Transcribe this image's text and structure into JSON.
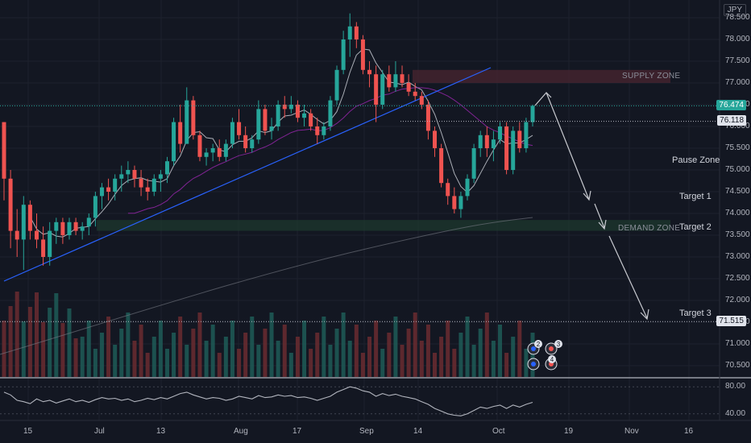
{
  "currency": "JPY",
  "price_ticks": [
    "78.500",
    "78.000",
    "77.500",
    "77.000",
    "76.500",
    "76.000",
    "75.500",
    "75.000",
    "74.500",
    "74.000",
    "73.500",
    "73.000",
    "72.500",
    "72.000",
    "71.500",
    "71.000",
    "70.500"
  ],
  "x_ticks": [
    "15",
    "Jul",
    "13",
    "Aug",
    "17",
    "Sep",
    "14",
    "Oct",
    "19",
    "Nov",
    "16"
  ],
  "osc_ticks": [
    "80.00",
    "40.00"
  ],
  "price_tags": {
    "last": "76.474",
    "level": "76.118",
    "target3": "71.515"
  },
  "zones": {
    "supply": "SUPPLY ZONE",
    "demand": "DEMAND ZONE"
  },
  "annotations": {
    "pause": "Pause Zone",
    "target1": "Target 1",
    "target2": "Target 2",
    "target3": "Target 3"
  },
  "events": [
    "2",
    "3",
    "4"
  ],
  "colors": {
    "bg": "#131722",
    "up": "#26a69a",
    "down": "#ef5350",
    "trendline": "#2962ff",
    "supply": "#4a2530",
    "demand": "#1e3a2e"
  },
  "chart_data": {
    "type": "candlestick",
    "ylim": [
      70.3,
      78.7
    ],
    "candles": [
      {
        "o": 76.1,
        "h": 76.1,
        "l": 74.3,
        "c": 74.8
      },
      {
        "o": 74.8,
        "h": 75.0,
        "l": 73.2,
        "c": 73.6
      },
      {
        "o": 73.6,
        "h": 74.1,
        "l": 73.0,
        "c": 73.4
      },
      {
        "o": 73.4,
        "h": 74.4,
        "l": 72.7,
        "c": 74.2
      },
      {
        "o": 74.2,
        "h": 74.3,
        "l": 73.4,
        "c": 73.6
      },
      {
        "o": 73.6,
        "h": 74.0,
        "l": 73.2,
        "c": 73.4
      },
      {
        "o": 73.4,
        "h": 73.7,
        "l": 72.8,
        "c": 73.0
      },
      {
        "o": 73.0,
        "h": 73.8,
        "l": 72.8,
        "c": 73.6
      },
      {
        "o": 73.6,
        "h": 73.9,
        "l": 73.3,
        "c": 73.8
      },
      {
        "o": 73.8,
        "h": 73.9,
        "l": 73.3,
        "c": 73.5
      },
      {
        "o": 73.5,
        "h": 73.9,
        "l": 73.4,
        "c": 73.8
      },
      {
        "o": 73.8,
        "h": 73.9,
        "l": 73.5,
        "c": 73.6
      },
      {
        "o": 73.6,
        "h": 73.8,
        "l": 73.4,
        "c": 73.7
      },
      {
        "o": 73.7,
        "h": 74.0,
        "l": 73.5,
        "c": 73.9
      },
      {
        "o": 73.9,
        "h": 74.5,
        "l": 73.7,
        "c": 74.4
      },
      {
        "o": 74.4,
        "h": 74.7,
        "l": 74.1,
        "c": 74.6
      },
      {
        "o": 74.6,
        "h": 74.8,
        "l": 74.3,
        "c": 74.5
      },
      {
        "o": 74.5,
        "h": 74.9,
        "l": 74.3,
        "c": 74.8
      },
      {
        "o": 74.8,
        "h": 75.1,
        "l": 74.5,
        "c": 74.9
      },
      {
        "o": 74.9,
        "h": 75.2,
        "l": 74.7,
        "c": 75.0
      },
      {
        "o": 75.0,
        "h": 75.1,
        "l": 74.6,
        "c": 74.8
      },
      {
        "o": 74.8,
        "h": 75.0,
        "l": 74.4,
        "c": 74.6
      },
      {
        "o": 74.6,
        "h": 74.8,
        "l": 74.3,
        "c": 74.5
      },
      {
        "o": 74.5,
        "h": 74.9,
        "l": 74.4,
        "c": 74.8
      },
      {
        "o": 74.8,
        "h": 75.0,
        "l": 74.5,
        "c": 74.9
      },
      {
        "o": 74.9,
        "h": 75.3,
        "l": 74.7,
        "c": 75.2
      },
      {
        "o": 75.2,
        "h": 76.2,
        "l": 75.1,
        "c": 76.1
      },
      {
        "o": 76.1,
        "h": 76.5,
        "l": 75.4,
        "c": 75.6
      },
      {
        "o": 75.6,
        "h": 76.9,
        "l": 75.6,
        "c": 76.6
      },
      {
        "o": 76.6,
        "h": 76.7,
        "l": 75.7,
        "c": 75.8
      },
      {
        "o": 75.8,
        "h": 75.9,
        "l": 75.2,
        "c": 75.3
      },
      {
        "o": 75.3,
        "h": 75.5,
        "l": 75.1,
        "c": 75.4
      },
      {
        "o": 75.4,
        "h": 75.6,
        "l": 75.2,
        "c": 75.5
      },
      {
        "o": 75.5,
        "h": 75.7,
        "l": 75.2,
        "c": 75.3
      },
      {
        "o": 75.3,
        "h": 75.7,
        "l": 75.2,
        "c": 75.6
      },
      {
        "o": 75.6,
        "h": 76.2,
        "l": 75.5,
        "c": 76.1
      },
      {
        "o": 76.1,
        "h": 76.4,
        "l": 75.7,
        "c": 75.8
      },
      {
        "o": 75.8,
        "h": 76.0,
        "l": 75.4,
        "c": 75.5
      },
      {
        "o": 75.5,
        "h": 75.8,
        "l": 75.4,
        "c": 75.7
      },
      {
        "o": 75.7,
        "h": 76.6,
        "l": 75.6,
        "c": 76.4
      },
      {
        "o": 76.4,
        "h": 76.5,
        "l": 75.8,
        "c": 75.9
      },
      {
        "o": 75.9,
        "h": 76.2,
        "l": 75.7,
        "c": 76.0
      },
      {
        "o": 76.0,
        "h": 76.6,
        "l": 75.9,
        "c": 76.5
      },
      {
        "o": 76.5,
        "h": 76.7,
        "l": 76.2,
        "c": 76.4
      },
      {
        "o": 76.4,
        "h": 76.7,
        "l": 76.3,
        "c": 76.5
      },
      {
        "o": 76.5,
        "h": 76.6,
        "l": 76.1,
        "c": 76.2
      },
      {
        "o": 76.2,
        "h": 76.5,
        "l": 76.0,
        "c": 76.3
      },
      {
        "o": 76.3,
        "h": 76.4,
        "l": 75.9,
        "c": 76.0
      },
      {
        "o": 76.0,
        "h": 76.2,
        "l": 75.6,
        "c": 75.8
      },
      {
        "o": 75.8,
        "h": 76.1,
        "l": 75.7,
        "c": 76.0
      },
      {
        "o": 76.0,
        "h": 76.7,
        "l": 75.9,
        "c": 76.6
      },
      {
        "o": 76.6,
        "h": 77.4,
        "l": 76.5,
        "c": 77.3
      },
      {
        "o": 77.3,
        "h": 78.2,
        "l": 77.2,
        "c": 78.0
      },
      {
        "o": 78.0,
        "h": 78.6,
        "l": 77.6,
        "c": 78.3
      },
      {
        "o": 78.3,
        "h": 78.4,
        "l": 77.8,
        "c": 78.0
      },
      {
        "o": 78.0,
        "h": 78.1,
        "l": 77.2,
        "c": 77.3
      },
      {
        "o": 77.3,
        "h": 77.5,
        "l": 76.9,
        "c": 77.2
      },
      {
        "o": 77.2,
        "h": 77.4,
        "l": 76.1,
        "c": 76.5
      },
      {
        "o": 76.5,
        "h": 77.3,
        "l": 76.4,
        "c": 77.2
      },
      {
        "o": 77.2,
        "h": 77.4,
        "l": 76.8,
        "c": 76.9
      },
      {
        "o": 76.9,
        "h": 77.5,
        "l": 76.8,
        "c": 77.2
      },
      {
        "o": 77.2,
        "h": 77.4,
        "l": 76.9,
        "c": 77.0
      },
      {
        "o": 77.0,
        "h": 77.2,
        "l": 76.7,
        "c": 76.8
      },
      {
        "o": 76.8,
        "h": 77.0,
        "l": 76.6,
        "c": 76.7
      },
      {
        "o": 76.7,
        "h": 76.8,
        "l": 76.4,
        "c": 76.5
      },
      {
        "o": 76.5,
        "h": 76.6,
        "l": 75.7,
        "c": 75.9
      },
      {
        "o": 75.9,
        "h": 76.0,
        "l": 75.3,
        "c": 75.5
      },
      {
        "o": 75.5,
        "h": 75.6,
        "l": 74.6,
        "c": 74.7
      },
      {
        "o": 74.7,
        "h": 74.8,
        "l": 74.2,
        "c": 74.4
      },
      {
        "o": 74.4,
        "h": 74.6,
        "l": 74.0,
        "c": 74.1
      },
      {
        "o": 74.1,
        "h": 74.5,
        "l": 73.9,
        "c": 74.4
      },
      {
        "o": 74.4,
        "h": 74.9,
        "l": 74.3,
        "c": 74.8
      },
      {
        "o": 74.8,
        "h": 75.6,
        "l": 74.7,
        "c": 75.5
      },
      {
        "o": 75.5,
        "h": 75.9,
        "l": 75.3,
        "c": 75.8
      },
      {
        "o": 75.8,
        "h": 76.0,
        "l": 75.3,
        "c": 75.5
      },
      {
        "o": 75.5,
        "h": 75.9,
        "l": 75.2,
        "c": 75.7
      },
      {
        "o": 75.7,
        "h": 76.1,
        "l": 75.6,
        "c": 76.0
      },
      {
        "o": 76.0,
        "h": 76.1,
        "l": 74.9,
        "c": 75.0
      },
      {
        "o": 75.0,
        "h": 76.0,
        "l": 74.9,
        "c": 75.9
      },
      {
        "o": 75.9,
        "h": 76.1,
        "l": 75.4,
        "c": 75.5
      },
      {
        "o": 75.5,
        "h": 76.2,
        "l": 75.4,
        "c": 76.1
      },
      {
        "o": 76.1,
        "h": 76.5,
        "l": 76.0,
        "c": 76.474
      }
    ],
    "levels": [
      76.474,
      76.118,
      71.515
    ],
    "supply_zone": [
      77.0,
      77.3
    ],
    "demand_zone": [
      73.6,
      73.85
    ],
    "oscillator_ylim": [
      30,
      90
    ]
  }
}
